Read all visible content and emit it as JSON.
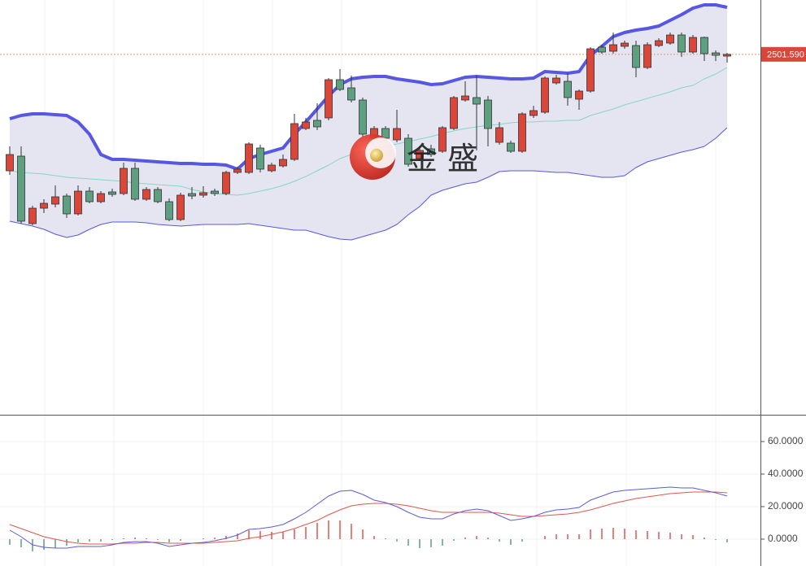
{
  "chart_data": [
    {
      "type": "candlestick",
      "open": [
        2430,
        2439,
        2397.5,
        2407,
        2409.5,
        2414.5,
        2403.5,
        2417.5,
        2411,
        2417,
        2416,
        2431.5,
        2412.5,
        2418.5,
        2411,
        2400,
        2416,
        2415,
        2417.5,
        2416,
        2429,
        2429,
        2444,
        2430,
        2433,
        2437,
        2456,
        2461,
        2462.5,
        2486,
        2481,
        2473.5,
        2450,
        2456,
        2449,
        2450,
        2437.5,
        2443.5,
        2442,
        2456,
        2473.5,
        2475,
        2473.5,
        2447.5,
        2447,
        2442,
        2464,
        2466,
        2484,
        2485,
        2474,
        2479,
        2506,
        2503.5,
        2506.5,
        2507,
        2493.5,
        2507,
        2508.5,
        2513.5,
        2503,
        2512,
        2502.5,
        2500.5
      ],
      "high": [
        2445,
        2445,
        2408.5,
        2412.5,
        2421,
        2416,
        2421,
        2420,
        2417.5,
        2419,
        2435,
        2435,
        2420,
        2420,
        2413,
        2416.5,
        2420,
        2420.5,
        2419,
        2430,
        2432.5,
        2447.5,
        2446,
        2435,
        2440,
        2465,
        2462.5,
        2471.5,
        2487,
        2492.5,
        2488.5,
        2475,
        2457.5,
        2457.5,
        2467.5,
        2452.5,
        2445,
        2446,
        2457.5,
        2476,
        2485,
        2488.5,
        2476,
        2460,
        2448.5,
        2466,
        2470,
        2488,
        2489,
        2490,
        2480,
        2506,
        2507.5,
        2515,
        2510,
        2510,
        2509,
        2511.5,
        2515,
        2515,
        2513.5,
        2512.5,
        2504,
        2502.5
      ],
      "low": [
        2427.5,
        2397.5,
        2396.5,
        2404,
        2407.5,
        2401,
        2402.5,
        2410,
        2410,
        2414,
        2415,
        2411.5,
        2411.5,
        2410,
        2399,
        2399,
        2412.5,
        2413.5,
        2414.5,
        2415,
        2428,
        2428,
        2429,
        2429,
        2432,
        2436,
        2455,
        2455,
        2461,
        2479,
        2472,
        2451,
        2449,
        2449,
        2447.5,
        2432.5,
        2436,
        2438.5,
        2441,
        2455,
        2472.5,
        2442.5,
        2445,
        2446,
        2441,
        2441,
        2462.5,
        2465,
        2483,
        2470,
        2467.5,
        2478,
        2502,
        2502,
        2505,
        2487.5,
        2492.5,
        2506,
        2507.5,
        2500,
        2502,
        2497.5,
        2497.5,
        2496.5
      ],
      "close": [
        2440,
        2399,
        2407,
        2410,
        2414,
        2403.5,
        2417.5,
        2411,
        2416,
        2415.5,
        2431.5,
        2412.5,
        2418.5,
        2411,
        2400,
        2415,
        2414.5,
        2416.5,
        2416,
        2429,
        2431,
        2446.5,
        2431,
        2433.5,
        2437,
        2459,
        2460,
        2457,
        2486,
        2480,
        2473.5,
        2452.5,
        2456,
        2450,
        2456,
        2434,
        2442.5,
        2440,
        2456.5,
        2475,
        2476,
        2471,
        2456,
        2456.5,
        2442,
        2465,
        2467,
        2487,
        2487,
        2475,
        2479,
        2505,
        2503,
        2507.5,
        2508.5,
        2493.5,
        2507.5,
        2510,
        2513.5,
        2503,
        2512,
        2502,
        2501,
        2501.59
      ],
      "up_color": "#d9473b",
      "down_color": "#5d9f7e",
      "ylim": [
        2280,
        2535
      ],
      "last_price": {
        "value": 2501.59,
        "label": "2501.590"
      },
      "price_line_color": "#e59a6a",
      "bands": {
        "upper": [
          2462,
          2464,
          2465,
          2465,
          2464.5,
          2464,
          2460,
          2452.5,
          2440,
          2437,
          2437,
          2436.5,
          2436,
          2435.5,
          2435,
          2434.5,
          2434.5,
          2434,
          2434,
          2433.5,
          2431,
          2437.5,
          2440,
          2442,
          2444,
          2452.5,
          2460,
          2468,
          2476,
          2483,
          2486.5,
          2487.5,
          2488,
          2488,
          2486.5,
          2485.5,
          2484.5,
          2483,
          2483.5,
          2485.5,
          2487.5,
          2488,
          2487.5,
          2487,
          2486.5,
          2486.5,
          2487,
          2491,
          2490.5,
          2490,
          2491,
          2501,
          2506.5,
          2512.5,
          2515,
          2516.5,
          2517.5,
          2519,
          2522.5,
          2526,
          2530,
          2532,
          2532,
          2530.5
        ],
        "middle": [
          2430,
          2429,
          2428.5,
          2428,
          2427,
          2426,
          2425.5,
          2425,
          2424.5,
          2424,
          2423.5,
          2422.5,
          2422,
          2421.5,
          2421,
          2420.5,
          2418.5,
          2417,
          2416,
          2415.5,
          2415,
          2416,
          2417.5,
          2419,
          2421,
          2423.5,
          2426.5,
          2430,
          2433.5,
          2437.5,
          2440,
          2442,
          2443.5,
          2445,
          2446.5,
          2448,
          2449.5,
          2451,
          2453,
          2454.5,
          2456,
          2457,
          2458,
          2458.5,
          2459.5,
          2460,
          2460,
          2460.5,
          2460.5,
          2461,
          2461,
          2464,
          2466,
          2468,
          2470.5,
          2472.5,
          2474.5,
          2476.5,
          2478.5,
          2481,
          2482.5,
          2486.5,
          2489.5,
          2493.5
        ],
        "lower": [
          2399,
          2397.5,
          2396,
          2394,
          2391,
          2389,
          2390.5,
          2394,
          2397,
          2398.5,
          2398.5,
          2398.5,
          2398,
          2397,
          2396.5,
          2396,
          2396.5,
          2397,
          2397,
          2397,
          2397,
          2397.5,
          2396.5,
          2395.5,
          2394.5,
          2393.5,
          2393.5,
          2391.5,
          2389.5,
          2388,
          2387.5,
          2389.5,
          2391.5,
          2393.5,
          2397,
          2403,
          2408,
          2415,
          2418,
          2420,
          2422,
          2423,
          2426,
          2429.5,
          2430,
          2430,
          2430,
          2429.5,
          2429,
          2429,
          2428,
          2427,
          2426,
          2426,
          2427,
          2432,
          2435.5,
          2437.5,
          2439.5,
          2441.5,
          2443,
          2445,
          2450,
          2456.5
        ],
        "upper_color": "#5757e3",
        "middle_color": "#86d6c1",
        "lower_color": "#5757e3",
        "fill": "#e5e5f2"
      },
      "watermark": "金盛"
    },
    {
      "type": "macd",
      "dif": [
        5.5,
        1.5,
        -3.5,
        -5,
        -5.5,
        -5.5,
        -4.5,
        -4.5,
        -4.5,
        -3.5,
        -2,
        -1.5,
        -1.5,
        -2.5,
        -4.5,
        -3.5,
        -2.5,
        -2,
        -1,
        0.5,
        2.5,
        6,
        6.5,
        7.5,
        9,
        12.5,
        16.5,
        21.5,
        26.5,
        29.5,
        30,
        27.5,
        24,
        22.5,
        20,
        16.5,
        13.5,
        12.5,
        12.5,
        15.5,
        17.5,
        18.5,
        17.5,
        14.5,
        11.5,
        12.5,
        14,
        16.5,
        18,
        18.5,
        19.5,
        24,
        26.5,
        29,
        30,
        30.5,
        31,
        31.5,
        32,
        31.5,
        31.5,
        30,
        28.5,
        26.5
      ],
      "dea": [
        9,
        6.5,
        4,
        1.5,
        0,
        -1.5,
        -2.5,
        -3,
        -3,
        -3,
        -2.5,
        -2.5,
        -2,
        -2,
        -2.5,
        -2.5,
        -2.5,
        -2.5,
        -2,
        -1.5,
        -1,
        0.5,
        1.5,
        3,
        4.5,
        6.5,
        9,
        11.5,
        15,
        18,
        20.5,
        21.5,
        22,
        22,
        21.5,
        20.5,
        19,
        17.5,
        16.5,
        16.5,
        16.5,
        16.5,
        16.5,
        16,
        15,
        14,
        14,
        14.5,
        15,
        15.5,
        16.5,
        18,
        20,
        22,
        23.5,
        25,
        26,
        27,
        28,
        28.5,
        29,
        29,
        29,
        28.5
      ],
      "hist": [
        -3.5,
        -5,
        -7.5,
        -6.5,
        -5.5,
        -4,
        -2,
        -1.5,
        -1.5,
        -0.5,
        0.5,
        1,
        0.5,
        -0.5,
        -2,
        -1,
        0,
        0.5,
        1,
        2,
        3.5,
        5.5,
        5,
        4.5,
        4.5,
        6,
        7.5,
        10,
        11.5,
        11.5,
        9.5,
        6,
        2,
        0.5,
        -1.5,
        -4,
        -5.5,
        -5,
        -4,
        -1,
        1,
        2,
        1,
        -1.5,
        -3.5,
        -1.5,
        0,
        2,
        3,
        3,
        3,
        6,
        6.5,
        7,
        6.5,
        5.5,
        5,
        4.5,
        4,
        3,
        2.5,
        1,
        -0.5,
        -2
      ],
      "dif_color": "#5b5be0",
      "dea_color": "#e2554c",
      "hist_up_color": "#e2554c",
      "hist_down_color": "#5d9f7e",
      "ylim": [
        -16.5,
        76.5
      ],
      "yticks": [
        {
          "value": 0,
          "label": "0.0000"
        },
        {
          "value": 20,
          "label": "20.0000"
        },
        {
          "value": 40,
          "label": "40.0000"
        },
        {
          "value": 60,
          "label": "60.0000"
        }
      ],
      "grid": true
    }
  ]
}
